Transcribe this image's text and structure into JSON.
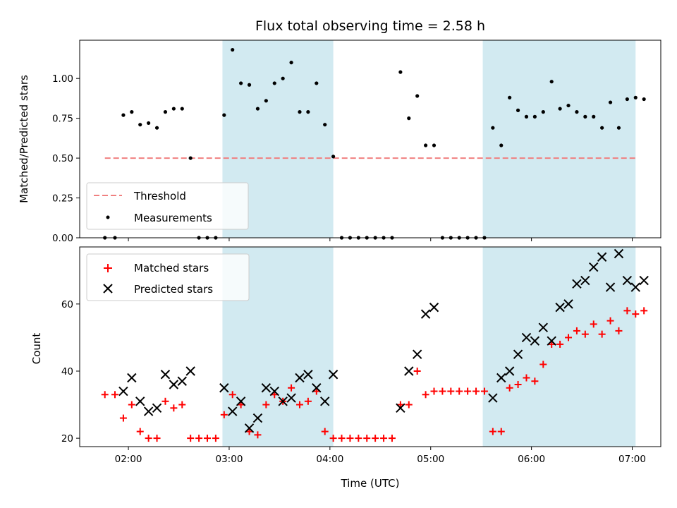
{
  "chart_data": [
    {
      "type": "scatter",
      "title": "Flux total observing time = 2.58 h",
      "xlabel": "",
      "ylabel": "Matched/Predicted stars",
      "x_unit": "hours (UTC)",
      "xlim": [
        "01:31",
        "07:17"
      ],
      "ylim": [
        0,
        1.24
      ],
      "y_ticks": [
        0.0,
        0.25,
        0.5,
        0.75,
        1.0
      ],
      "y_tick_labels": [
        "0.00",
        "0.25",
        "0.50",
        "0.75",
        "1.00"
      ],
      "shaded_intervals": [
        [
          "02:56",
          "04:02"
        ],
        [
          "05:31",
          "07:02"
        ]
      ],
      "shade_color": "#add8e6",
      "threshold": {
        "name": "Threshold",
        "value": 0.5,
        "x_range": [
          "01:46",
          "07:02"
        ],
        "color": "#f08080",
        "style": "dashed"
      },
      "series": [
        {
          "name": "Measurements",
          "color": "#000000",
          "marker": "dot",
          "points": [
            [
              "01:46",
              0.0
            ],
            [
              "01:52",
              0.0
            ],
            [
              "01:57",
              0.77
            ],
            [
              "02:02",
              0.79
            ],
            [
              "02:07",
              0.71
            ],
            [
              "02:12",
              0.72
            ],
            [
              "02:17",
              0.69
            ],
            [
              "02:22",
              0.79
            ],
            [
              "02:27",
              0.81
            ],
            [
              "02:32",
              0.81
            ],
            [
              "02:37",
              0.5
            ],
            [
              "02:42",
              0.0
            ],
            [
              "02:47",
              0.0
            ],
            [
              "02:52",
              0.0
            ],
            [
              "02:57",
              0.77
            ],
            [
              "03:02",
              1.18
            ],
            [
              "03:07",
              0.97
            ],
            [
              "03:12",
              0.96
            ],
            [
              "03:17",
              0.81
            ],
            [
              "03:22",
              0.86
            ],
            [
              "03:27",
              0.97
            ],
            [
              "03:32",
              1.0
            ],
            [
              "03:37",
              1.1
            ],
            [
              "03:42",
              0.79
            ],
            [
              "03:47",
              0.79
            ],
            [
              "03:52",
              0.97
            ],
            [
              "03:57",
              0.71
            ],
            [
              "04:02",
              0.51
            ],
            [
              "04:07",
              0.0
            ],
            [
              "04:12",
              0.0
            ],
            [
              "04:17",
              0.0
            ],
            [
              "04:22",
              0.0
            ],
            [
              "04:27",
              0.0
            ],
            [
              "04:32",
              0.0
            ],
            [
              "04:37",
              0.0
            ],
            [
              "04:42",
              1.04
            ],
            [
              "04:47",
              0.75
            ],
            [
              "04:52",
              0.89
            ],
            [
              "04:57",
              0.58
            ],
            [
              "05:02",
              0.58
            ],
            [
              "05:07",
              0.0
            ],
            [
              "05:12",
              0.0
            ],
            [
              "05:17",
              0.0
            ],
            [
              "05:22",
              0.0
            ],
            [
              "05:27",
              0.0
            ],
            [
              "05:32",
              0.0
            ],
            [
              "05:37",
              0.69
            ],
            [
              "05:42",
              0.58
            ],
            [
              "05:47",
              0.88
            ],
            [
              "05:52",
              0.8
            ],
            [
              "05:57",
              0.76
            ],
            [
              "06:02",
              0.76
            ],
            [
              "06:07",
              0.79
            ],
            [
              "06:12",
              0.98
            ],
            [
              "06:17",
              0.81
            ],
            [
              "06:22",
              0.83
            ],
            [
              "06:27",
              0.79
            ],
            [
              "06:32",
              0.76
            ],
            [
              "06:37",
              0.76
            ],
            [
              "06:42",
              0.69
            ],
            [
              "06:47",
              0.85
            ],
            [
              "06:52",
              0.69
            ],
            [
              "06:57",
              0.87
            ],
            [
              "07:02",
              0.88
            ],
            [
              "07:07",
              0.87
            ]
          ]
        }
      ],
      "legend": {
        "placement": "lower-left",
        "entries": [
          "Threshold",
          "Measurements"
        ]
      },
      "grid": false
    },
    {
      "type": "scatter",
      "title": "",
      "xlabel": "Time (UTC)",
      "ylabel": "Count",
      "x_unit": "hours (UTC)",
      "xlim": [
        "01:31",
        "07:17"
      ],
      "ylim": [
        17.5,
        77
      ],
      "x_ticks": [
        "02:00",
        "03:00",
        "04:00",
        "05:00",
        "06:00",
        "07:00"
      ],
      "y_ticks": [
        20,
        40,
        60
      ],
      "shaded_intervals": [
        [
          "02:56",
          "04:02"
        ],
        [
          "05:31",
          "07:02"
        ]
      ],
      "shade_color": "#add8e6",
      "series": [
        {
          "name": "Matched stars",
          "color": "#ff0000",
          "marker": "plus",
          "points": [
            [
              "01:46",
              33
            ],
            [
              "01:52",
              33
            ],
            [
              "01:57",
              26
            ],
            [
              "02:02",
              30
            ],
            [
              "02:07",
              22
            ],
            [
              "02:12",
              20
            ],
            [
              "02:17",
              20
            ],
            [
              "02:22",
              31
            ],
            [
              "02:27",
              29
            ],
            [
              "02:32",
              30
            ],
            [
              "02:37",
              20
            ],
            [
              "02:42",
              20
            ],
            [
              "02:47",
              20
            ],
            [
              "02:52",
              20
            ],
            [
              "02:57",
              27
            ],
            [
              "03:02",
              33
            ],
            [
              "03:07",
              30
            ],
            [
              "03:12",
              22
            ],
            [
              "03:17",
              21
            ],
            [
              "03:22",
              30
            ],
            [
              "03:27",
              33
            ],
            [
              "03:32",
              31
            ],
            [
              "03:37",
              35
            ],
            [
              "03:42",
              30
            ],
            [
              "03:47",
              31
            ],
            [
              "03:52",
              34
            ],
            [
              "03:57",
              22
            ],
            [
              "04:02",
              20
            ],
            [
              "04:07",
              20
            ],
            [
              "04:12",
              20
            ],
            [
              "04:17",
              20
            ],
            [
              "04:22",
              20
            ],
            [
              "04:27",
              20
            ],
            [
              "04:32",
              20
            ],
            [
              "04:37",
              20
            ],
            [
              "04:42",
              30
            ],
            [
              "04:47",
              30
            ],
            [
              "04:52",
              40
            ],
            [
              "04:57",
              33
            ],
            [
              "05:02",
              34
            ],
            [
              "05:07",
              34
            ],
            [
              "05:12",
              34
            ],
            [
              "05:17",
              34
            ],
            [
              "05:22",
              34
            ],
            [
              "05:27",
              34
            ],
            [
              "05:32",
              34
            ],
            [
              "05:37",
              22
            ],
            [
              "05:42",
              22
            ],
            [
              "05:47",
              35
            ],
            [
              "05:52",
              36
            ],
            [
              "05:57",
              38
            ],
            [
              "06:02",
              37
            ],
            [
              "06:07",
              42
            ],
            [
              "06:12",
              48
            ],
            [
              "06:17",
              48
            ],
            [
              "06:22",
              50
            ],
            [
              "06:27",
              52
            ],
            [
              "06:32",
              51
            ],
            [
              "06:37",
              54
            ],
            [
              "06:42",
              51
            ],
            [
              "06:47",
              55
            ],
            [
              "06:52",
              52
            ],
            [
              "06:57",
              58
            ],
            [
              "07:02",
              57
            ],
            [
              "07:07",
              58
            ]
          ]
        },
        {
          "name": "Predicted stars",
          "color": "#000000",
          "marker": "x",
          "points": [
            [
              "01:57",
              34
            ],
            [
              "02:02",
              38
            ],
            [
              "02:07",
              31
            ],
            [
              "02:12",
              28
            ],
            [
              "02:17",
              29
            ],
            [
              "02:22",
              39
            ],
            [
              "02:27",
              36
            ],
            [
              "02:32",
              37
            ],
            [
              "02:37",
              40
            ],
            [
              "02:57",
              35
            ],
            [
              "03:02",
              28
            ],
            [
              "03:07",
              31
            ],
            [
              "03:12",
              23
            ],
            [
              "03:17",
              26
            ],
            [
              "03:22",
              35
            ],
            [
              "03:27",
              34
            ],
            [
              "03:32",
              31
            ],
            [
              "03:37",
              32
            ],
            [
              "03:42",
              38
            ],
            [
              "03:47",
              39
            ],
            [
              "03:52",
              35
            ],
            [
              "03:57",
              31
            ],
            [
              "04:02",
              39
            ],
            [
              "04:42",
              29
            ],
            [
              "04:47",
              40
            ],
            [
              "04:52",
              45
            ],
            [
              "04:57",
              57
            ],
            [
              "05:02",
              59
            ],
            [
              "05:37",
              32
            ],
            [
              "05:42",
              38
            ],
            [
              "05:47",
              40
            ],
            [
              "05:52",
              45
            ],
            [
              "05:57",
              50
            ],
            [
              "06:02",
              49
            ],
            [
              "06:07",
              53
            ],
            [
              "06:12",
              49
            ],
            [
              "06:17",
              59
            ],
            [
              "06:22",
              60
            ],
            [
              "06:27",
              66
            ],
            [
              "06:32",
              67
            ],
            [
              "06:37",
              71
            ],
            [
              "06:42",
              74
            ],
            [
              "06:47",
              65
            ],
            [
              "06:52",
              75
            ],
            [
              "06:57",
              67
            ],
            [
              "07:02",
              65
            ],
            [
              "07:07",
              67
            ]
          ]
        }
      ],
      "legend": {
        "placement": "upper-left",
        "entries": [
          "Matched stars",
          "Predicted stars"
        ]
      },
      "grid": false
    }
  ]
}
